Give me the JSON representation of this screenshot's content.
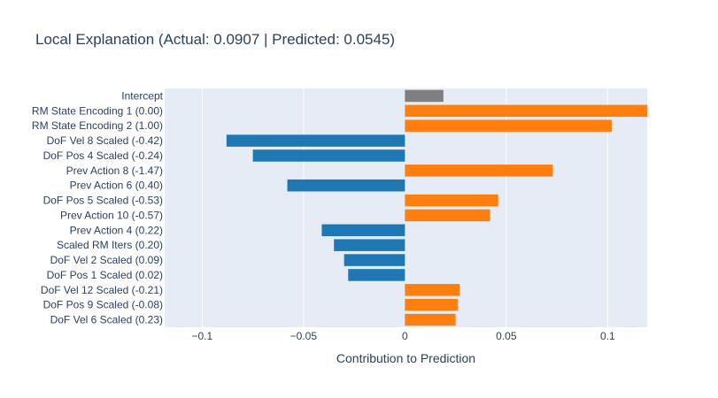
{
  "chart_data": {
    "type": "bar",
    "orientation": "horizontal",
    "title": "Local Explanation (Actual: 0.0907 | Predicted: 0.0545)",
    "xlabel": "Contribution to Prediction",
    "ylabel": "",
    "xlim": [
      -0.1185,
      0.1195
    ],
    "xticks": [
      -0.1,
      -0.05,
      0,
      0.05,
      0.1
    ],
    "xtick_labels": [
      "−0.1",
      "−0.05",
      "0",
      "0.05",
      "0.1"
    ],
    "grid": true,
    "colors": {
      "positive": "#ff7f0e",
      "negative": "#1f77b4",
      "intercept": "#7f7f7f",
      "plot_background": "#e5ecf6",
      "gridline": "#ffffff",
      "text": "#2a3f5f"
    },
    "categories": [
      "Intercept",
      "RM State Encoding 1 (0.00)",
      "RM State Encoding 2 (1.00)",
      "DoF Vel 8 Scaled (-0.42)",
      "DoF Pos 4 Scaled (-0.24)",
      "Prev Action 8 (-1.47)",
      "Prev Action 6 (0.40)",
      "DoF Pos 5 Scaled (-0.53)",
      "Prev Action 10 (-0.57)",
      "Prev Action 4 (0.22)",
      "Scaled RM Iters (0.20)",
      "DoF Vel 2 Scaled (0.09)",
      "DoF Pos 1 Scaled (0.02)",
      "DoF Vel 12 Scaled (-0.21)",
      "DoF Pos 9 Scaled (-0.08)",
      "DoF Vel 6 Scaled (0.23)"
    ],
    "values": [
      0.019,
      0.125,
      0.102,
      -0.088,
      -0.075,
      0.073,
      -0.058,
      0.046,
      0.042,
      -0.041,
      -0.035,
      -0.03,
      -0.028,
      0.027,
      0.026,
      0.025
    ],
    "bar_kinds": [
      "intercept",
      "positive",
      "positive",
      "negative",
      "negative",
      "positive",
      "negative",
      "positive",
      "positive",
      "negative",
      "negative",
      "negative",
      "negative",
      "positive",
      "positive",
      "positive"
    ]
  }
}
